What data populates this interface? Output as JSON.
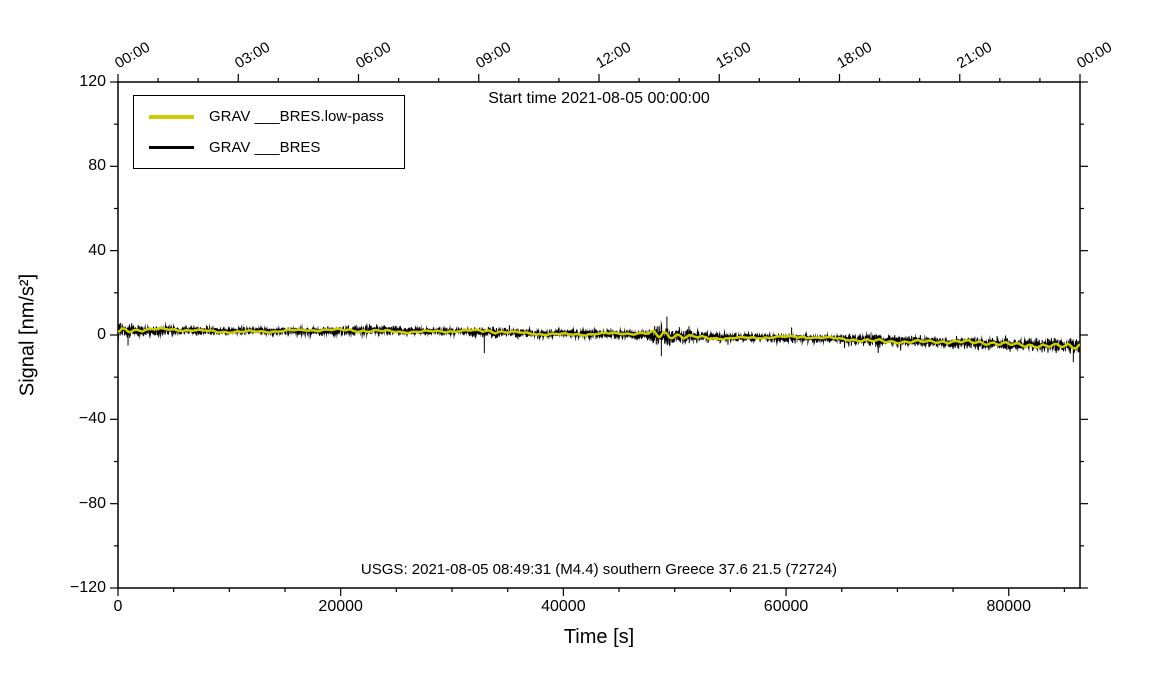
{
  "chart_data": {
    "type": "line",
    "title": "Start time 2021-08-05 00:00:00",
    "xlabel": "Time [s]",
    "ylabel": "Signal [nm/s²]",
    "xlim": [
      0,
      86400
    ],
    "ylim": [
      -120,
      120
    ],
    "grid": false,
    "background": "#ffffff",
    "frame_color": "#000000",
    "x_ticks_bottom": {
      "values": [
        0,
        20000,
        40000,
        60000,
        80000
      ],
      "labels": [
        "0",
        "20000",
        "40000",
        "60000",
        "80000"
      ],
      "minor_interval": 5000
    },
    "x_ticks_top": {
      "values": [
        0,
        10800,
        21600,
        32400,
        43200,
        54000,
        64800,
        75600,
        86400
      ],
      "labels": [
        "00:00",
        "03:00",
        "06:00",
        "09:00",
        "12:00",
        "15:00",
        "18:00",
        "21:00",
        "00:00"
      ],
      "minor_interval": 3600,
      "label_angle_deg": -30
    },
    "y_ticks": {
      "values": [
        -120,
        -80,
        -40,
        0,
        40,
        80,
        120
      ],
      "labels": [
        "−120",
        "−80",
        "−40",
        "0",
        "40",
        "80",
        "120"
      ],
      "minor_interval": 20
    },
    "legend": [
      {
        "label": "GRAV ___BRES.low-pass",
        "color": "#cccc00"
      },
      {
        "label": "GRAV ___BRES",
        "color": "#000000"
      }
    ],
    "annotation": "USGS: 2021-08-05 08:49:31 (M4.4) southern Greece 37.6 21.5 (72724)",
    "series": [
      {
        "name": "GRAV ___BRES.low-pass",
        "color": "#cccc00",
        "style": "low-pass",
        "baseline": {
          "x": [
            0,
            4000,
            8000,
            12000,
            16000,
            20000,
            24000,
            28000,
            32000,
            36000,
            40000,
            44000,
            48000,
            50000,
            54000,
            58000,
            62000,
            66000,
            70000,
            74000,
            78000,
            82000,
            86400
          ],
          "y": [
            2.0,
            2.2,
            2.0,
            2.0,
            1.8,
            2.0,
            2.2,
            1.8,
            1.5,
            1.0,
            0.8,
            0.5,
            0.2,
            -0.5,
            -1.0,
            -1.2,
            -1.5,
            -2.0,
            -2.8,
            -3.5,
            -4.0,
            -4.5,
            -5.0
          ]
        }
      },
      {
        "name": "GRAV ___BRES",
        "color": "#000000",
        "style": "noise-band",
        "envelope": {
          "x": [
            0,
            1500,
            4000,
            10000,
            16000,
            21000,
            23000,
            27000,
            32000,
            33500,
            36000,
            40000,
            44000,
            47500,
            48500,
            50000,
            52000,
            56000,
            60000,
            64000,
            67000,
            68500,
            70000,
            74000,
            78000,
            82000,
            85000,
            86400
          ],
          "amp": [
            7,
            5,
            3.5,
            3.2,
            3.2,
            4,
            4.2,
            3.3,
            3.6,
            5,
            3.3,
            3.2,
            3.6,
            4,
            9,
            7,
            4.2,
            3.4,
            3.4,
            3.4,
            4.5,
            5,
            4.2,
            4.6,
            5,
            5,
            5.5,
            7.5
          ]
        },
        "spikes": [
          {
            "x": 900,
            "amp": -7
          },
          {
            "x": 32900,
            "amp": -10
          },
          {
            "x": 48800,
            "amp": -10
          },
          {
            "x": 49300,
            "amp": 9
          },
          {
            "x": 60500,
            "amp": 5
          },
          {
            "x": 85800,
            "amp": -8
          }
        ]
      }
    ]
  }
}
